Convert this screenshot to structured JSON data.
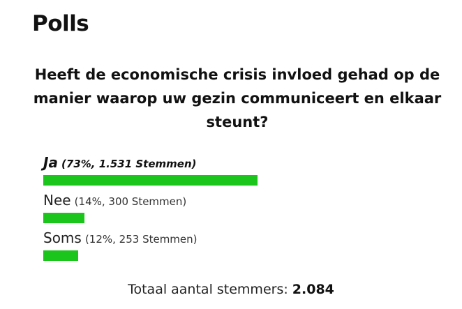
{
  "widget": {
    "title": "Polls"
  },
  "poll": {
    "question": "Heeft de economische crisis invloed gehad op de manier waarop uw gezin communiceert en elkaar steunt?",
    "options": [
      {
        "label": "Ja",
        "meta": "(73%, 1.531 Stemmen)",
        "percent": 73,
        "leading": true
      },
      {
        "label": "Nee",
        "meta": "(14%, 300 Stemmen)",
        "percent": 14,
        "leading": false
      },
      {
        "label": "Soms",
        "meta": "(12%, 253 Stemmen)",
        "percent": 12,
        "leading": false
      }
    ],
    "total_label": "Totaal aantal stemmers:",
    "total_value": "2.084"
  },
  "colors": {
    "bar": "#1cc51c",
    "text": "#111111",
    "background": "#ffffff"
  }
}
